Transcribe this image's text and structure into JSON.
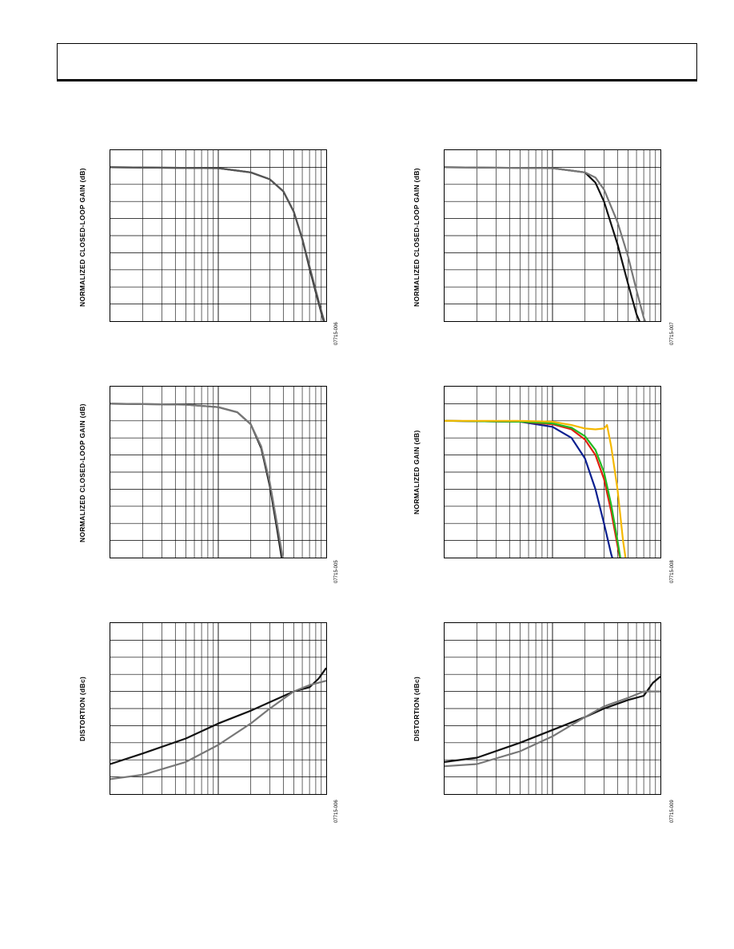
{
  "page": {
    "header_title": ""
  },
  "chart_data": [
    {
      "id": "p1",
      "type": "line",
      "ylabel": "NORMALIZED CLOSED-LOOP GAIN (dB)",
      "xlabel": "",
      "figure_id": "07715-006",
      "x_scale": "log",
      "xlim": [
        1,
        100
      ],
      "ylim": [
        -9,
        1
      ],
      "series": [
        {
          "color": "#111111",
          "x": [
            1,
            10,
            20,
            30,
            40,
            50,
            60,
            70,
            80,
            90,
            100
          ],
          "y": [
            0,
            -0.05,
            -0.3,
            -0.7,
            -1.4,
            -2.6,
            -4.2,
            -5.9,
            -7.3,
            -8.5,
            -9.5
          ]
        },
        {
          "color": "#555555",
          "x": [
            1,
            10,
            20,
            30,
            40,
            50,
            60,
            70,
            80,
            90,
            100
          ],
          "y": [
            0,
            -0.05,
            -0.3,
            -0.7,
            -1.4,
            -2.6,
            -4.2,
            -5.8,
            -7.2,
            -8.4,
            -9.4
          ]
        }
      ]
    },
    {
      "id": "p2",
      "type": "line",
      "ylabel": "NORMALIZED CLOSED-LOOP GAIN (dB)",
      "xlabel": "",
      "figure_id": "07715-007",
      "x_scale": "log",
      "xlim": [
        1,
        100
      ],
      "ylim": [
        -9,
        1
      ],
      "series": [
        {
          "color": "#111111",
          "x": [
            1,
            10,
            20,
            25,
            30,
            40,
            50,
            60,
            70
          ],
          "y": [
            0,
            -0.05,
            -0.3,
            -0.9,
            -2.0,
            -4.5,
            -6.8,
            -8.6,
            -9.6
          ]
        },
        {
          "color": "#777777",
          "x": [
            1,
            10,
            20,
            25,
            30,
            40,
            50,
            60,
            70,
            80
          ],
          "y": [
            0,
            -0.05,
            -0.3,
            -0.6,
            -1.3,
            -3.2,
            -5.2,
            -7.2,
            -8.8,
            -9.7
          ]
        }
      ]
    },
    {
      "id": "p3",
      "type": "line",
      "ylabel": "NORMALIZED CLOSED-LOOP GAIN (dB)",
      "xlabel": "",
      "figure_id": "07715-005",
      "x_scale": "log",
      "xlim": [
        1,
        100
      ],
      "ylim": [
        -9,
        1
      ],
      "series": [
        {
          "color": "#111111",
          "x": [
            1,
            5,
            10,
            15,
            20,
            25,
            30,
            35,
            40
          ],
          "y": [
            0,
            -0.05,
            -0.2,
            -0.5,
            -1.2,
            -2.6,
            -4.8,
            -7.3,
            -9.6
          ]
        },
        {
          "color": "#777777",
          "x": [
            1,
            5,
            10,
            15,
            20,
            25,
            30,
            35,
            40,
            42
          ],
          "y": [
            0,
            -0.05,
            -0.2,
            -0.5,
            -1.2,
            -2.5,
            -4.6,
            -7.0,
            -9.2,
            -9.8
          ]
        }
      ]
    },
    {
      "id": "p4",
      "type": "line",
      "ylabel": "NORMALIZED GAIN (dB)",
      "xlabel": "",
      "figure_id": "07715-008",
      "x_scale": "log",
      "xlim": [
        1,
        100
      ],
      "ylim": [
        -8,
        2
      ],
      "series": [
        {
          "color": "#0a1f8f",
          "x": [
            1,
            5,
            10,
            15,
            20,
            25,
            30,
            35,
            40
          ],
          "y": [
            0,
            -0.05,
            -0.35,
            -1.0,
            -2.2,
            -4.0,
            -6.0,
            -7.8,
            -9
          ]
        },
        {
          "color": "#e02010",
          "x": [
            1,
            5,
            10,
            15,
            20,
            25,
            30,
            35,
            40,
            45
          ],
          "y": [
            0,
            -0.05,
            -0.2,
            -0.5,
            -1.1,
            -2.0,
            -3.4,
            -5.3,
            -7.3,
            -9
          ]
        },
        {
          "color": "#22bb22",
          "x": [
            1,
            5,
            10,
            15,
            20,
            25,
            30,
            35,
            40,
            45
          ],
          "y": [
            0,
            -0.05,
            -0.15,
            -0.4,
            -0.9,
            -1.7,
            -3.0,
            -4.9,
            -7.0,
            -9
          ]
        },
        {
          "color": "#f5b800",
          "x": [
            1,
            5,
            10,
            15,
            20,
            25,
            30,
            32,
            35,
            40,
            45,
            50
          ],
          "y": [
            0,
            0,
            -0.05,
            -0.25,
            -0.45,
            -0.5,
            -0.45,
            -0.25,
            -1.5,
            -4.0,
            -7.0,
            -9
          ]
        }
      ]
    },
    {
      "id": "p5",
      "type": "line",
      "ylabel": "DISTORTION (dBc)",
      "xlabel": "",
      "figure_id": "07715-006",
      "x_scale": "log",
      "xlim": [
        1,
        100
      ],
      "ylim": [
        -110,
        -30
      ],
      "series": [
        {
          "color": "#111111",
          "x": [
            1,
            2,
            5,
            10,
            20,
            30,
            50,
            70,
            85,
            100
          ],
          "y": [
            -96,
            -91,
            -84,
            -77,
            -71,
            -67,
            -62,
            -60,
            -56,
            -51
          ]
        },
        {
          "color": "#777777",
          "x": [
            1,
            2,
            5,
            10,
            20,
            30,
            50,
            70,
            100
          ],
          "y": [
            -103,
            -101,
            -95,
            -87,
            -77,
            -70,
            -62,
            -59,
            -57
          ]
        }
      ]
    },
    {
      "id": "p6",
      "type": "line",
      "ylabel": "DISTORTION (dBc)",
      "xlabel": "",
      "figure_id": "07715-009",
      "x_scale": "log",
      "xlim": [
        1,
        100
      ],
      "ylim": [
        -110,
        -30
      ],
      "series": [
        {
          "color": "#111111",
          "x": [
            1,
            2,
            5,
            10,
            20,
            30,
            50,
            70,
            85,
            100
          ],
          "y": [
            -95,
            -93,
            -86,
            -80,
            -74,
            -70,
            -66,
            -64,
            -58,
            -55
          ]
        },
        {
          "color": "#777777",
          "x": [
            1,
            2,
            5,
            10,
            20,
            30,
            50,
            70,
            100
          ],
          "y": [
            -97,
            -96,
            -90,
            -83,
            -74,
            -69,
            -65,
            -62,
            -62
          ]
        }
      ]
    }
  ]
}
